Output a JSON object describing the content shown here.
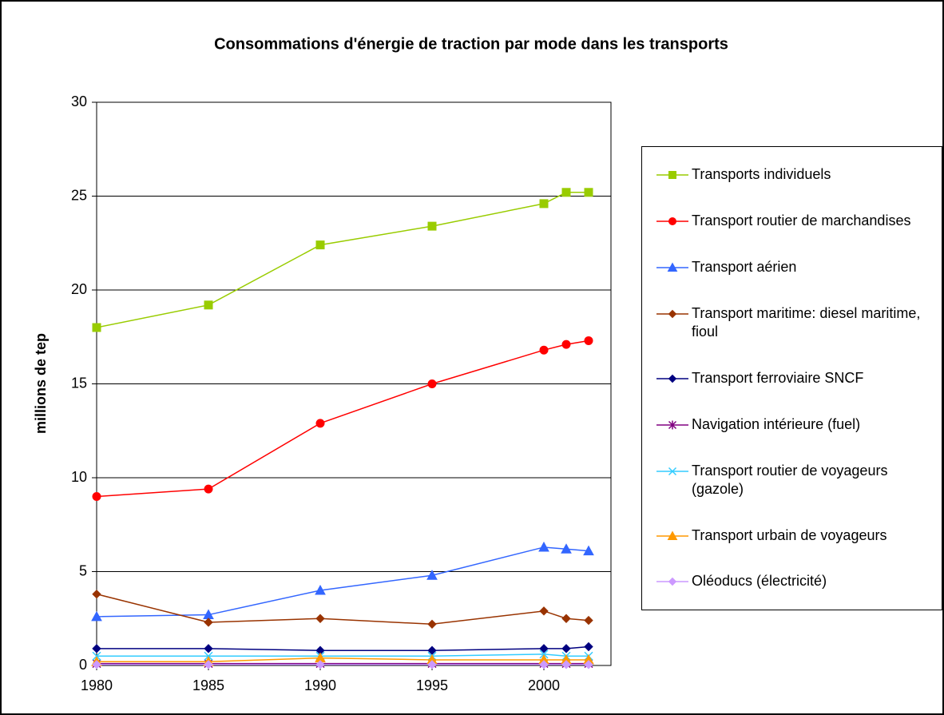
{
  "chart_data": {
    "type": "line",
    "title": "Consommations d'énergie de traction par mode dans les transports",
    "y_label": "millions de tep",
    "x": [
      1980,
      1985,
      1990,
      1995,
      2000,
      2001,
      2002
    ],
    "xlim": [
      1980,
      2003
    ],
    "xticks": [
      1980,
      1985,
      1990,
      1995,
      2000
    ],
    "ylim": [
      0,
      30
    ],
    "yticks": [
      0,
      5,
      10,
      15,
      20,
      25,
      30
    ],
    "grid": true,
    "legend": "right",
    "series": [
      {
        "name": "Transports individuels",
        "color": "#99cc00",
        "marker": "square",
        "values": [
          18.0,
          19.2,
          22.4,
          23.4,
          24.6,
          25.2,
          25.2
        ]
      },
      {
        "name": "Transport routier de marchandises",
        "color": "#ff0000",
        "marker": "circle",
        "values": [
          9.0,
          9.4,
          12.9,
          15.0,
          16.8,
          17.1,
          17.3
        ]
      },
      {
        "name": "Transport aérien",
        "color": "#3366ff",
        "marker": "triangle",
        "values": [
          2.6,
          2.7,
          4.0,
          4.8,
          6.3,
          6.2,
          6.1
        ]
      },
      {
        "name": "Transport maritime: diesel maritime, fioul",
        "color": "#993300",
        "marker": "diamond",
        "values": [
          3.8,
          2.3,
          2.5,
          2.2,
          2.9,
          2.5,
          2.4
        ]
      },
      {
        "name": "Transport ferroviaire SNCF",
        "color": "#000080",
        "marker": "diamond",
        "values": [
          0.9,
          0.9,
          0.8,
          0.8,
          0.9,
          0.9,
          1.0
        ]
      },
      {
        "name": "Navigation intérieure (fuel)",
        "color": "#800080",
        "marker": "asterisk",
        "values": [
          0.1,
          0.1,
          0.1,
          0.1,
          0.1,
          0.1,
          0.1
        ]
      },
      {
        "name": "Transport routier de voyageurs (gazole)",
        "color": "#33ccff",
        "marker": "x",
        "values": [
          0.5,
          0.5,
          0.5,
          0.5,
          0.6,
          0.5,
          0.5
        ]
      },
      {
        "name": "Transport urbain de voyageurs",
        "color": "#ff9900",
        "marker": "triangle",
        "values": [
          0.2,
          0.2,
          0.4,
          0.3,
          0.3,
          0.3,
          0.3
        ]
      },
      {
        "name": "Oléoducs (électricité)",
        "color": "#cc99ff",
        "marker": "diamond",
        "values": [
          0.05,
          0.05,
          0.05,
          0.05,
          0.05,
          0.05,
          0.05
        ]
      }
    ]
  }
}
